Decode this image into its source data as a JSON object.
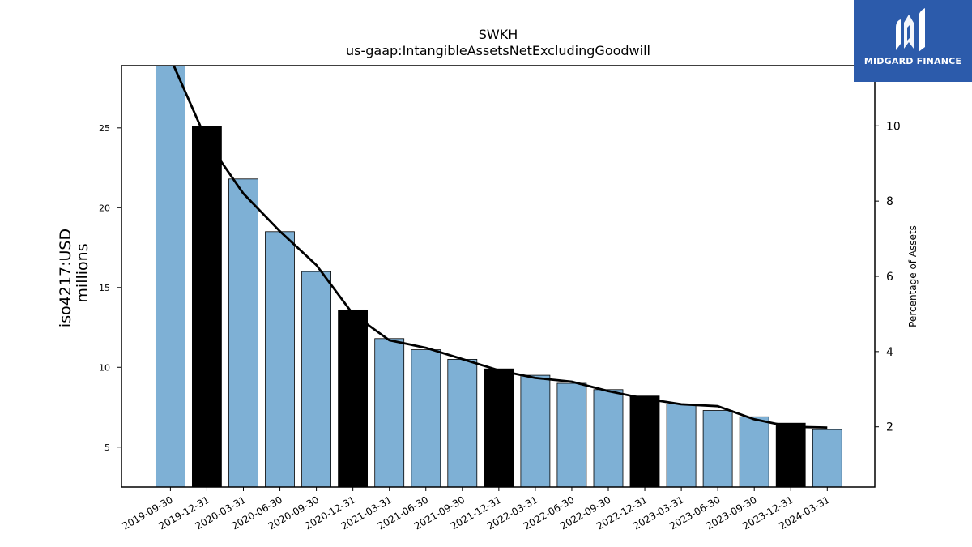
{
  "chart_data": {
    "type": "bar",
    "title": "SWKH",
    "subtitle": "us-gaap:IntangibleAssetsNetExcludingGoodwill",
    "ylabel": "iso4217:USD",
    "ylabel_units": "millions",
    "y2label": "Percentage of Assets",
    "categories": [
      "2019-09-30",
      "2019-12-31",
      "2020-03-31",
      "2020-06-30",
      "2020-09-30",
      "2020-12-31",
      "2021-03-31",
      "2021-06-30",
      "2021-09-30",
      "2021-12-31",
      "2022-03-31",
      "2022-06-30",
      "2022-09-30",
      "2022-12-31",
      "2023-03-31",
      "2023-06-30",
      "2023-09-30",
      "2023-12-31",
      "2024-03-31"
    ],
    "values": [
      28.9,
      25.1,
      21.8,
      18.5,
      16.0,
      13.6,
      11.8,
      11.1,
      10.5,
      9.9,
      9.5,
      9.0,
      8.6,
      8.2,
      7.7,
      7.3,
      6.9,
      6.5,
      6.1
    ],
    "highlight": [
      false,
      true,
      false,
      false,
      false,
      true,
      false,
      false,
      false,
      true,
      false,
      false,
      false,
      true,
      false,
      false,
      false,
      true,
      false
    ],
    "bar_color": "#7eb0d5",
    "highlight_color": "#000000",
    "line_series": {
      "name": "Percentage of Assets",
      "values": [
        11.8,
        9.6,
        8.2,
        7.2,
        6.3,
        5.0,
        4.3,
        4.1,
        3.8,
        3.5,
        3.3,
        3.2,
        2.95,
        2.75,
        2.6,
        2.55,
        2.2,
        2.0,
        1.98
      ]
    },
    "ylim": [
      2.5,
      28.9
    ],
    "y_ticks": [
      5,
      10,
      15,
      20,
      25
    ],
    "y2lim": [
      0.4,
      11.6
    ],
    "y2_ticks": [
      2,
      4,
      6,
      8,
      10
    ]
  },
  "logo": {
    "text": "MIDGARD FINANCE"
  }
}
